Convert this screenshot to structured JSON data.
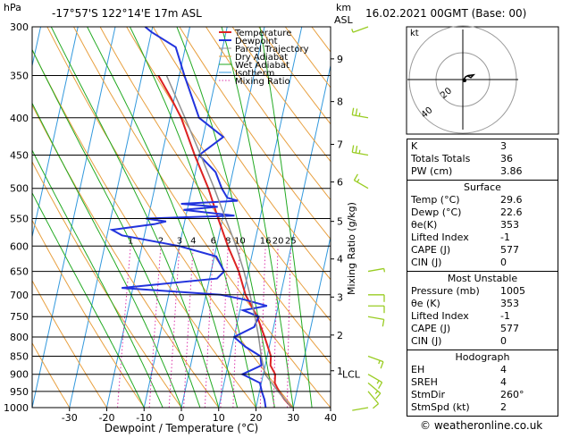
{
  "header": {
    "pressure_unit": "hPa",
    "location": "-17°57'S  122°14'E  17m  ASL",
    "altitude_unit_line1": "km",
    "altitude_unit_line2": "ASL",
    "datetime": "16.02.2021  00GMT  (Base: 00)"
  },
  "chart_data": {
    "type": "line",
    "title": "",
    "xlabel": "Dewpoint / Temperature (°C)",
    "ylabel": "",
    "mixing_ratio_axis_label": "Mixing Ratio (g/kg)",
    "xlim": [
      -40,
      40
    ],
    "ylim": [
      1000,
      300
    ],
    "log_pressure_axis": true,
    "pressure_ticks": [
      300,
      350,
      400,
      450,
      500,
      550,
      600,
      650,
      700,
      750,
      800,
      850,
      900,
      950,
      1000
    ],
    "temperature_ticks": [
      -30,
      -20,
      -10,
      0,
      10,
      20,
      30,
      40
    ],
    "height_ticks_km": [
      {
        "label": "1",
        "p": 890
      },
      {
        "label": "2",
        "p": 795
      },
      {
        "label": "3",
        "p": 705
      },
      {
        "label": "4",
        "p": 625
      },
      {
        "label": "5",
        "p": 555
      },
      {
        "label": "6",
        "p": 490
      },
      {
        "label": "7",
        "p": 435
      },
      {
        "label": "8",
        "p": 380
      },
      {
        "label": "9",
        "p": 332
      }
    ],
    "lcl_label": "LCL",
    "lcl_pressure": 900,
    "mixing_ratio_labels": [
      "1",
      "2",
      "3",
      "4",
      "6",
      "8",
      "10",
      "16",
      "20",
      "25"
    ],
    "mixing_ratio_values": [
      1,
      2,
      3,
      4,
      6,
      8,
      10,
      16,
      20,
      25
    ],
    "legend": [
      "Temperature",
      "Dewpoint",
      "Parcel Trajectory",
      "Dry Adiabat",
      "Wet Adiabat",
      "Isotherm",
      "Mixing Ratio"
    ],
    "series": [
      {
        "name": "Temperature",
        "color": "#dd2222",
        "points": [
          [
            1000,
            29.6
          ],
          [
            975,
            27.2
          ],
          [
            950,
            25.2
          ],
          [
            925,
            23.6
          ],
          [
            900,
            23.2
          ],
          [
            875,
            21.4
          ],
          [
            850,
            21.0
          ],
          [
            800,
            18.2
          ],
          [
            750,
            15.0
          ],
          [
            700,
            10.6
          ],
          [
            650,
            7.4
          ],
          [
            600,
            3.0
          ],
          [
            550,
            -1.2
          ],
          [
            500,
            -5.6
          ],
          [
            450,
            -11.2
          ],
          [
            400,
            -17.0
          ],
          [
            375,
            -21.0
          ],
          [
            350,
            -25.6
          ]
        ]
      },
      {
        "name": "Dewpoint",
        "color": "#2233dd",
        "points": [
          [
            1000,
            22.6
          ],
          [
            975,
            21.8
          ],
          [
            950,
            20.6
          ],
          [
            925,
            19.6
          ],
          [
            900,
            14.4
          ],
          [
            875,
            19.0
          ],
          [
            850,
            18.2
          ],
          [
            825,
            13.6
          ],
          [
            800,
            10.0
          ],
          [
            775,
            14.8
          ],
          [
            750,
            15.4
          ],
          [
            735,
            10.8
          ],
          [
            725,
            17.0
          ],
          [
            710,
            10.2
          ],
          [
            700,
            4.0
          ],
          [
            685,
            -23.0
          ],
          [
            665,
            2.0
          ],
          [
            650,
            3.5
          ],
          [
            620,
            0.5
          ],
          [
            600,
            -10.0
          ],
          [
            580,
            -26.0
          ],
          [
            570,
            -29.0
          ],
          [
            560,
            -18.0
          ],
          [
            555,
            -15.0
          ],
          [
            550,
            -20.6
          ],
          [
            545,
            3.0
          ],
          [
            535,
            -11.0
          ],
          [
            530,
            -2.0
          ],
          [
            525,
            -12.0
          ],
          [
            520,
            3.0
          ],
          [
            515,
            0.0
          ],
          [
            500,
            -2.0
          ],
          [
            475,
            -4.6
          ],
          [
            450,
            -10.0
          ],
          [
            425,
            -4.6
          ],
          [
            400,
            -12.2
          ],
          [
            350,
            -18.6
          ],
          [
            320,
            -22.6
          ],
          [
            305,
            -30.0
          ],
          [
            300,
            -32.0
          ]
        ]
      },
      {
        "name": "Parcel Trajectory",
        "color": "#909090",
        "points": [
          [
            1000,
            29.6
          ],
          [
            950,
            25.0
          ],
          [
            900,
            20.5
          ],
          [
            850,
            18.4
          ],
          [
            800,
            16.6
          ],
          [
            750,
            14.4
          ],
          [
            700,
            11.8
          ],
          [
            650,
            8.8
          ],
          [
            600,
            5.2
          ],
          [
            550,
            0.8
          ],
          [
            500,
            -4.0
          ],
          [
            450,
            -9.6
          ],
          [
            400,
            -16.0
          ],
          [
            350,
            -23.4
          ]
        ]
      }
    ],
    "wind_barbs": [
      {
        "p": 1000,
        "dir_deg": 260,
        "speed_kt": 2
      },
      {
        "p": 950,
        "dir_deg": 140,
        "speed_kt": 10
      },
      {
        "p": 925,
        "dir_deg": 130,
        "speed_kt": 15
      },
      {
        "p": 900,
        "dir_deg": 120,
        "speed_kt": 15
      },
      {
        "p": 850,
        "dir_deg": 110,
        "speed_kt": 15
      },
      {
        "p": 750,
        "dir_deg": 100,
        "speed_kt": 10
      },
      {
        "p": 725,
        "dir_deg": 90,
        "speed_kt": 10
      },
      {
        "p": 700,
        "dir_deg": 90,
        "speed_kt": 10
      },
      {
        "p": 650,
        "dir_deg": 80,
        "speed_kt": 5
      },
      {
        "p": 500,
        "dir_deg": 300,
        "speed_kt": 15
      },
      {
        "p": 450,
        "dir_deg": 280,
        "speed_kt": 25
      },
      {
        "p": 400,
        "dir_deg": 280,
        "speed_kt": 25
      },
      {
        "p": 300,
        "dir_deg": 250,
        "speed_kt": 5
      }
    ],
    "wind_barb_color": "#99cc22"
  },
  "hodograph": {
    "unit_label": "kt",
    "ring_labels": [
      "20",
      "40"
    ],
    "trace": [
      [
        0,
        0
      ],
      [
        1,
        0.5
      ],
      [
        2,
        2
      ],
      [
        4,
        3
      ],
      [
        8,
        3.5
      ],
      [
        6,
        1.5
      ],
      [
        3,
        3
      ]
    ]
  },
  "indices": {
    "k_label": "K",
    "k_value": "3",
    "tt_label": "Totals Totals",
    "tt_value": "36",
    "pw_label": "PW (cm)",
    "pw_value": "3.86",
    "surface": {
      "title": "Surface",
      "rows": [
        {
          "k": "Temp (°C)",
          "v": "29.6"
        },
        {
          "k": "Dewp (°C)",
          "v": "22.6"
        },
        {
          "k": "θe(K)",
          "v": "353"
        },
        {
          "k": "Lifted Index",
          "v": "-1"
        },
        {
          "k": "CAPE (J)",
          "v": "577"
        },
        {
          "k": "CIN (J)",
          "v": "0"
        }
      ]
    },
    "most_unstable": {
      "title": "Most Unstable",
      "rows": [
        {
          "k": "Pressure (mb)",
          "v": "1005"
        },
        {
          "k": "θe (K)",
          "v": "353"
        },
        {
          "k": "Lifted Index",
          "v": "-1"
        },
        {
          "k": "CAPE (J)",
          "v": "577"
        },
        {
          "k": "CIN (J)",
          "v": "0"
        }
      ]
    },
    "hodograph_block": {
      "title": "Hodograph",
      "rows": [
        {
          "k": "EH",
          "v": "4"
        },
        {
          "k": "SREH",
          "v": "4"
        },
        {
          "k": "StmDir",
          "v": "260°"
        },
        {
          "k": "StmSpd (kt)",
          "v": "2"
        }
      ]
    }
  },
  "copyright": "© weatheronline.co.uk",
  "colors": {
    "dry_adiabat": "#e8a040",
    "wet_adiabat": "#22aa22",
    "isotherm": "#3399dd",
    "mixing_ratio": "#dd33aa",
    "temperature": "#dd2222",
    "dewpoint": "#2233dd",
    "parcel": "#909090"
  }
}
